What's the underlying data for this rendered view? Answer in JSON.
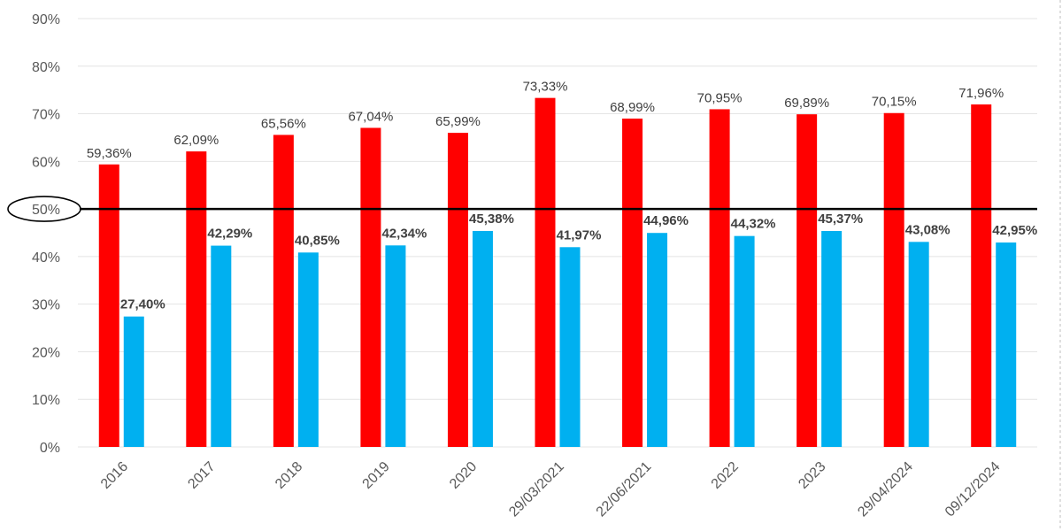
{
  "chart_data": {
    "type": "bar",
    "title": "",
    "xlabel": "",
    "ylabel": "",
    "ylim": [
      0,
      90
    ],
    "y_ticks": [
      "0%",
      "10%",
      "20%",
      "30%",
      "40%",
      "50%",
      "60%",
      "70%",
      "80%",
      "90%"
    ],
    "grid": true,
    "categories": [
      "2016",
      "2017",
      "2018",
      "2019",
      "2020",
      "29/03/2021",
      "22/06/2021",
      "2022",
      "2023",
      "29/04/2024",
      "09/12/2024"
    ],
    "series": [
      {
        "color": "#ff0000",
        "values": [
          59.36,
          62.09,
          65.56,
          67.04,
          65.99,
          73.33,
          68.99,
          70.95,
          69.89,
          70.15,
          71.96
        ],
        "labels": [
          "59,36%",
          "62,09%",
          "65,56%",
          "67,04%",
          "65,99%",
          "73,33%",
          "68,99%",
          "70,95%",
          "69,89%",
          "70,15%",
          "71,96%"
        ]
      },
      {
        "color": "#00b0f0",
        "values": [
          27.4,
          42.29,
          40.85,
          42.34,
          45.38,
          41.97,
          44.96,
          44.32,
          45.37,
          43.08,
          42.95
        ],
        "labels": [
          "27,40%",
          "42,29%",
          "40,85%",
          "42,34%",
          "45,38%",
          "41,97%",
          "44,96%",
          "44,32%",
          "45,37%",
          "43,08%",
          "42,95%"
        ]
      }
    ],
    "reference_line": {
      "value": 50,
      "color": "#000000",
      "highlighted_tick": "50%"
    }
  }
}
